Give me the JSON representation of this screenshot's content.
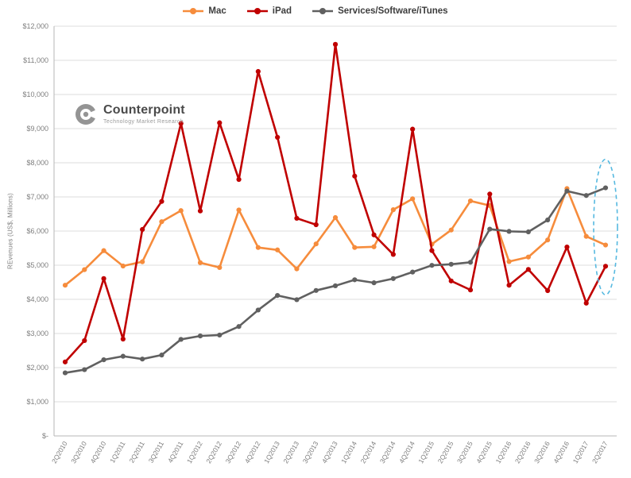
{
  "watermark": {
    "name": "Counterpoint",
    "subtitle": "Technology Market Research"
  },
  "chart_data": {
    "type": "line",
    "title": "",
    "xlabel": "",
    "ylabel": "REvenues (US$, Millions)",
    "ylim": [
      0,
      12000
    ],
    "y_tick_step": 1000,
    "y_tick_labels": [
      "$-",
      "$1,000",
      "$2,000",
      "$3,000",
      "$4,000",
      "$5,000",
      "$6,000",
      "$7,000",
      "$8,000",
      "$9,000",
      "$10,000",
      "$11,000",
      "$12,000"
    ],
    "grid": true,
    "legend_position": "top-center",
    "categories": [
      "2Q2010",
      "3Q2010",
      "4Q2010",
      "1Q2011",
      "2Q2011",
      "3Q2011",
      "4Q2011",
      "1Q2012",
      "2Q2012",
      "3Q2012",
      "4Q2012",
      "1Q2013",
      "2Q2013",
      "3Q2013",
      "4Q2013",
      "1Q2014",
      "2Q2014",
      "3Q2014",
      "4Q2014",
      "1Q2015",
      "2Q2015",
      "3Q2015",
      "4Q2015",
      "1Q2016",
      "2Q2016",
      "3Q2016",
      "4Q2016",
      "1Q2017",
      "2Q2017"
    ],
    "series": [
      {
        "name": "Mac",
        "color": "#F68C3C",
        "values": [
          4414,
          4870,
          5427,
          4976,
          5101,
          6275,
          6598,
          5073,
          4933,
          6617,
          5519,
          5447,
          4893,
          5624,
          6395,
          5519,
          5540,
          6625,
          6944,
          5615,
          6030,
          6882,
          6746,
          5107,
          5239,
          5739,
          7244,
          5844,
          5592
        ]
      },
      {
        "name": "iPad",
        "color": "#C00000",
        "values": [
          2166,
          2792,
          4608,
          2836,
          6046,
          6868,
          9153,
          6590,
          9171,
          7511,
          10674,
          8746,
          6374,
          6186,
          11468,
          7610,
          5889,
          5316,
          8985,
          5428,
          4538,
          4276,
          7084,
          4413,
          4876,
          4255,
          5533,
          3889,
          4969
        ]
      },
      {
        "name": "Services/Software/iTunes",
        "color": "#606060",
        "values": [
          1847,
          1940,
          2230,
          2334,
          2251,
          2369,
          2827,
          2928,
          2954,
          3205,
          3687,
          4114,
          3990,
          4260,
          4397,
          4573,
          4485,
          4608,
          4799,
          4996,
          5028,
          5086,
          6056,
          5991,
          5976,
          6325,
          7172,
          7041,
          7266
        ]
      }
    ],
    "annotation": {
      "shape": "dashed-ellipse",
      "color": "#56B9E0",
      "target": "2Q2017"
    }
  }
}
